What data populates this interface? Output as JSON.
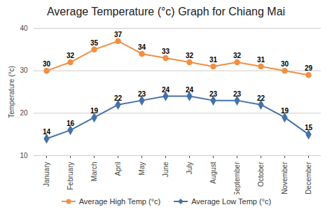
{
  "chart_data": {
    "type": "line",
    "title": "Average Temperature (°c) Graph for Chiang Mai",
    "y_label": "Temperature (°c)",
    "categories": [
      "January",
      "February",
      "March",
      "April",
      "May",
      "June",
      "July",
      "August",
      "September",
      "October",
      "November",
      "December"
    ],
    "series": [
      {
        "name": "Average High Temp (°c)",
        "color": "#f28f43",
        "marker": "circle",
        "values": [
          30,
          32,
          35,
          37,
          34,
          33,
          32,
          31,
          32,
          31,
          30,
          29
        ]
      },
      {
        "name": "Average Low Temp (°c)",
        "color": "#4572a7",
        "marker": "diamond",
        "values": [
          14,
          16,
          19,
          22,
          23,
          24,
          24,
          23,
          23,
          22,
          19,
          15
        ]
      }
    ],
    "ylim": [
      10,
      40
    ],
    "yticks": [
      10,
      20,
      30,
      40
    ],
    "grid": true,
    "legend": "bottom",
    "data_labels": true
  }
}
